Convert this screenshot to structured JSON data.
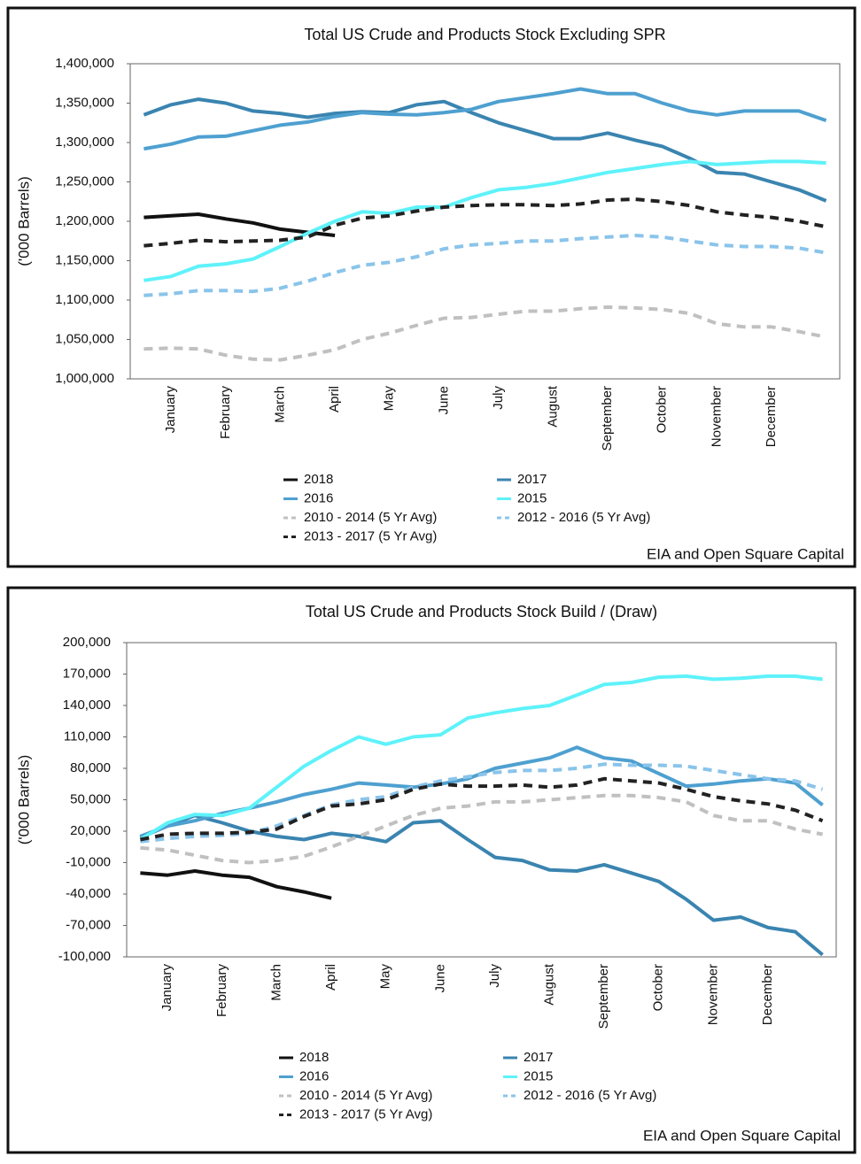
{
  "chart_data": [
    {
      "type": "line",
      "title": "Total US Crude and Products Stock Excluding SPR",
      "y_label": "('000 Barrels)",
      "source": "EIA and Open Square Capital",
      "categories": [
        null,
        "January",
        null,
        "February",
        null,
        "March",
        null,
        "April",
        null,
        "May",
        null,
        "June",
        null,
        "July",
        null,
        "August",
        null,
        "September",
        null,
        "October",
        null,
        "November",
        null,
        "December",
        null,
        null
      ],
      "ylim": [
        1000000,
        1400000
      ],
      "yticks": [
        {
          "value": 1000000,
          "label": "1,000,000"
        },
        {
          "value": 1050000,
          "label": "1,050,000"
        },
        {
          "value": 1100000,
          "label": "1,100,000"
        },
        {
          "value": 1150000,
          "label": "1,150,000"
        },
        {
          "value": 1200000,
          "label": "1,200,000"
        },
        {
          "value": 1250000,
          "label": "1,250,000"
        },
        {
          "value": 1300000,
          "label": "1,300,000"
        },
        {
          "value": 1350000,
          "label": "1,350,000"
        },
        {
          "value": 1400000,
          "label": "1,400,000"
        }
      ],
      "series": [
        {
          "name": "2018",
          "color": "#111111",
          "dashed": false,
          "values": [
            1205000,
            1207000,
            1209000,
            1203000,
            1198000,
            1190000,
            1186000,
            1182000,
            null,
            null,
            null,
            null,
            null,
            null,
            null,
            null,
            null,
            null,
            null,
            null,
            null,
            null,
            null,
            null,
            null,
            null
          ]
        },
        {
          "name": "2017",
          "color": "#3a84b0",
          "dashed": false,
          "values": [
            1335000,
            1348000,
            1355000,
            1350000,
            1340000,
            1337000,
            1332000,
            1337000,
            1339000,
            1338000,
            1348000,
            1352000,
            1338000,
            1325000,
            1315000,
            1305000,
            1305000,
            1312000,
            1303000,
            1295000,
            1280000,
            1262000,
            1260000,
            1250000,
            1240000,
            1226000
          ]
        },
        {
          "name": "2016",
          "color": "#4ea0d0",
          "dashed": false,
          "values": [
            1292000,
            1298000,
            1307000,
            1308000,
            1315000,
            1322000,
            1326000,
            1333000,
            1338000,
            1336000,
            1335000,
            1338000,
            1342000,
            1352000,
            1357000,
            1362000,
            1368000,
            1362000,
            1362000,
            1350000,
            1340000,
            1335000,
            1340000,
            1340000,
            1340000,
            1328000
          ]
        },
        {
          "name": "2015",
          "color": "#5ef2fa",
          "dashed": false,
          "values": [
            1125000,
            1130000,
            1143000,
            1146000,
            1152000,
            1168000,
            1185000,
            1200000,
            1212000,
            1210000,
            1218000,
            1218000,
            1230000,
            1240000,
            1243000,
            1248000,
            1255000,
            1262000,
            1267000,
            1272000,
            1276000,
            1272000,
            1274000,
            1276000,
            1276000,
            1274000
          ]
        },
        {
          "name": "2010 - 2014 (5 Yr Avg)",
          "color": "#c0c0c0",
          "dashed": true,
          "values": [
            1038000,
            1039000,
            1038000,
            1030000,
            1025000,
            1024000,
            1030000,
            1037000,
            1050000,
            1058000,
            1068000,
            1077000,
            1078000,
            1082000,
            1086000,
            1086000,
            1089000,
            1091000,
            1090000,
            1088000,
            1083000,
            1070000,
            1066000,
            1066000,
            1060000,
            1053000
          ]
        },
        {
          "name": "2012 - 2016 (5 Yr Avg)",
          "color": "#8ac4ea",
          "dashed": true,
          "values": [
            1106000,
            1108000,
            1112000,
            1112000,
            1111000,
            1115000,
            1124000,
            1135000,
            1144000,
            1148000,
            1155000,
            1165000,
            1170000,
            1172000,
            1175000,
            1175000,
            1178000,
            1180000,
            1182000,
            1180000,
            1175000,
            1170000,
            1168000,
            1168000,
            1166000,
            1160000
          ]
        },
        {
          "name": "2013 - 2017 (5 Yr Avg)",
          "color": "#222222",
          "dashed": true,
          "values": [
            1169000,
            1172000,
            1176000,
            1174000,
            1175000,
            1176000,
            1180000,
            1195000,
            1204000,
            1207000,
            1213000,
            1218000,
            1220000,
            1221000,
            1221000,
            1220000,
            1222000,
            1227000,
            1228000,
            1225000,
            1220000,
            1212000,
            1208000,
            1205000,
            1200000,
            1193000
          ]
        }
      ]
    },
    {
      "type": "line",
      "title": "Total US Crude and Products Stock Build / (Draw)",
      "y_label": "('000 Barrels)",
      "source": "EIA and Open Square Capital",
      "categories": [
        null,
        "January",
        null,
        "February",
        null,
        "March",
        null,
        "April",
        null,
        "May",
        null,
        "June",
        null,
        "July",
        null,
        "August",
        null,
        "September",
        null,
        "October",
        null,
        "November",
        null,
        "December",
        null,
        null
      ],
      "ylim": [
        -100000,
        200000
      ],
      "yticks": [
        {
          "value": -100000,
          "label": "-100,000"
        },
        {
          "value": -70000,
          "label": "-70,000"
        },
        {
          "value": -40000,
          "label": "-40,000"
        },
        {
          "value": -10000,
          "label": "-10,000"
        },
        {
          "value": 20000,
          "label": "20,000"
        },
        {
          "value": 50000,
          "label": "50,000"
        },
        {
          "value": 80000,
          "label": "80,000"
        },
        {
          "value": 110000,
          "label": "110,000"
        },
        {
          "value": 140000,
          "label": "140,000"
        },
        {
          "value": 170000,
          "label": "170,000"
        },
        {
          "value": 200000,
          "label": "200,000"
        }
      ],
      "series": [
        {
          "name": "2018",
          "color": "#111111",
          "dashed": false,
          "values": [
            -20000,
            -22000,
            -18000,
            -22000,
            -24000,
            -33000,
            -38000,
            -44000,
            null,
            null,
            null,
            null,
            null,
            null,
            null,
            null,
            null,
            null,
            null,
            null,
            null,
            null,
            null,
            null,
            null,
            null
          ]
        },
        {
          "name": "2017",
          "color": "#3a84b0",
          "dashed": false,
          "values": [
            14000,
            25000,
            35000,
            28000,
            20000,
            15000,
            12000,
            18000,
            15000,
            10000,
            28000,
            30000,
            12000,
            -5000,
            -8000,
            -17000,
            -18000,
            -12000,
            -20000,
            -28000,
            -45000,
            -65000,
            -62000,
            -72000,
            -76000,
            -98000
          ]
        },
        {
          "name": "2016",
          "color": "#4ea0d0",
          "dashed": false,
          "values": [
            15000,
            25000,
            30000,
            37000,
            42000,
            48000,
            55000,
            60000,
            66000,
            64000,
            62000,
            65000,
            70000,
            80000,
            85000,
            90000,
            100000,
            90000,
            87000,
            75000,
            63000,
            65000,
            68000,
            70000,
            66000,
            45000
          ]
        },
        {
          "name": "2015",
          "color": "#5ef2fa",
          "dashed": false,
          "values": [
            12000,
            28000,
            36000,
            35000,
            42000,
            62000,
            82000,
            97000,
            110000,
            103000,
            110000,
            112000,
            128000,
            133000,
            137000,
            140000,
            150000,
            160000,
            162000,
            167000,
            168000,
            165000,
            166000,
            168000,
            168000,
            165000
          ]
        },
        {
          "name": "2010 - 2014 (5 Yr Avg)",
          "color": "#c0c0c0",
          "dashed": true,
          "values": [
            4000,
            2000,
            -3000,
            -8000,
            -10000,
            -8000,
            -4000,
            5000,
            15000,
            25000,
            35000,
            42000,
            44000,
            48000,
            48000,
            50000,
            52000,
            54000,
            54000,
            52000,
            48000,
            35000,
            30000,
            30000,
            22000,
            17000
          ]
        },
        {
          "name": "2012 - 2016 (5 Yr Avg)",
          "color": "#8ac4ea",
          "dashed": true,
          "values": [
            10000,
            13000,
            15000,
            16000,
            18000,
            25000,
            35000,
            45000,
            50000,
            53000,
            62000,
            68000,
            72000,
            76000,
            78000,
            78000,
            80000,
            84000,
            83000,
            83000,
            82000,
            78000,
            74000,
            70000,
            68000,
            60000
          ]
        },
        {
          "name": "2013 - 2017 (5 Yr Avg)",
          "color": "#222222",
          "dashed": true,
          "values": [
            12000,
            17000,
            18000,
            18000,
            19000,
            22000,
            34000,
            44000,
            46000,
            50000,
            60000,
            65000,
            63000,
            63000,
            64000,
            62000,
            64000,
            70000,
            68000,
            66000,
            60000,
            53000,
            49000,
            46000,
            40000,
            30000
          ]
        }
      ]
    }
  ]
}
